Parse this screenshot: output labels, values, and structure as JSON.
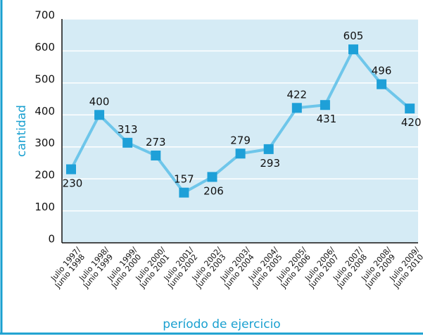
{
  "chart_data": {
    "type": "line",
    "x_label": "período de ejercicio",
    "y_label": "cantidad",
    "categories": [
      [
        "Julio 1997/",
        "Junio 1998"
      ],
      [
        "Julio 1998/",
        "Junio 1999"
      ],
      [
        "Julio 1999/",
        "Junio 2000"
      ],
      [
        "Julio 2000/",
        "Junio 2001"
      ],
      [
        "Julio 2001/",
        "Junio 2002"
      ],
      [
        "Julio 2002/",
        "Junio 2003"
      ],
      [
        "Julio 2003/",
        "Junio 2004"
      ],
      [
        "Julio 2004/",
        "Junio 2005"
      ],
      [
        "Julio 2005/",
        "Junio 2006"
      ],
      [
        "Julio 2006/",
        "Junio 2007"
      ],
      [
        "Julio 2007/",
        "Junio 2008"
      ],
      [
        "Julio 2008/",
        "Junio 2009"
      ],
      [
        "Julio 2009/",
        "Junio 2010"
      ]
    ],
    "values": [
      230,
      400,
      313,
      273,
      157,
      206,
      279,
      293,
      422,
      431,
      605,
      496,
      420
    ],
    "color": "#6ec6ea",
    "marker_color": "#1ea0d8",
    "ylim": [
      0,
      700
    ],
    "yticks": [
      0,
      100,
      200,
      300,
      400,
      500,
      600,
      700
    ],
    "grid": true
  }
}
